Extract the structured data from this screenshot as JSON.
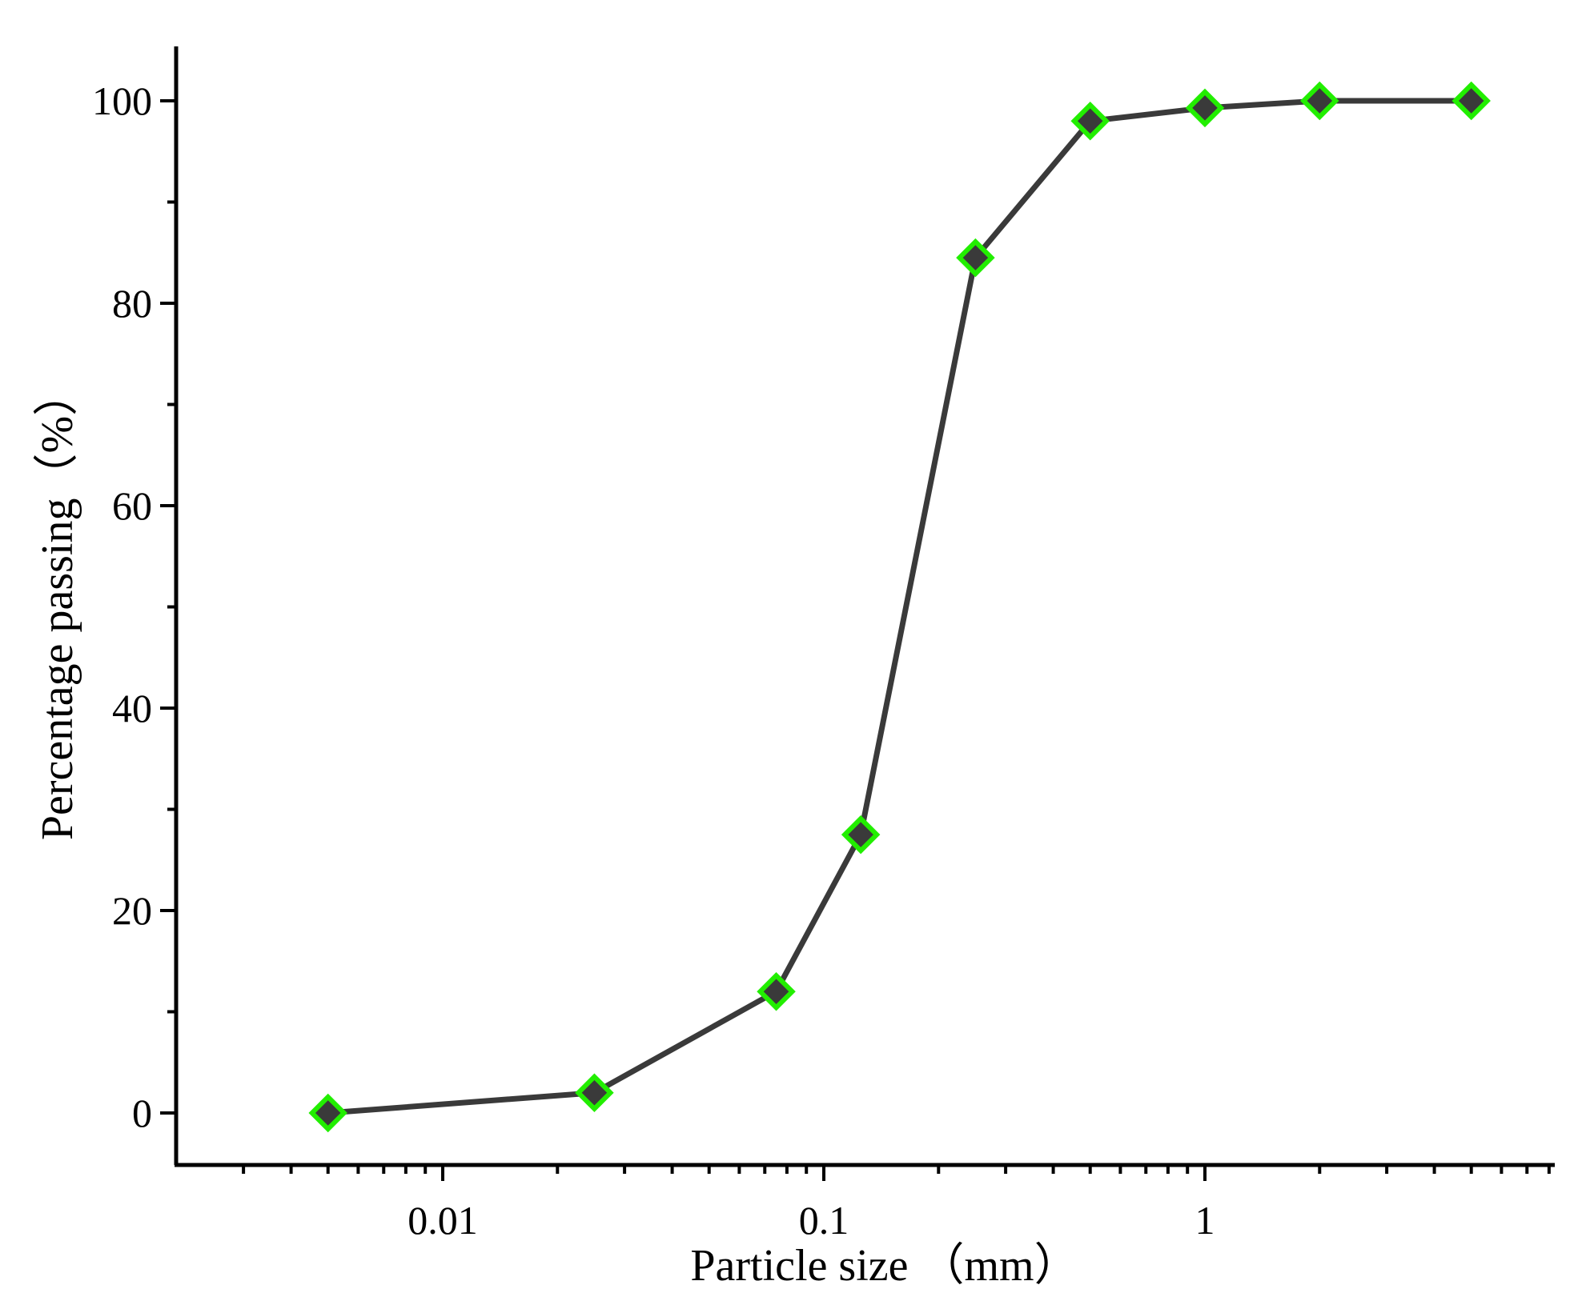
{
  "chart_data": {
    "type": "line",
    "title": "",
    "xlabel": "Particle size （mm）",
    "ylabel": "Percentage passing（%）",
    "x_scale": "log",
    "xlim": [
      0.002,
      8
    ],
    "ylim": [
      -5,
      105
    ],
    "x_ticks": [
      {
        "value": 0.01,
        "label": "0.01"
      },
      {
        "value": 0.1,
        "label": "0.1"
      },
      {
        "value": 1,
        "label": "1"
      }
    ],
    "y_ticks": [
      {
        "value": 0,
        "label": "0"
      },
      {
        "value": 20,
        "label": "20"
      },
      {
        "value": 40,
        "label": "40"
      },
      {
        "value": 60,
        "label": "60"
      },
      {
        "value": 80,
        "label": "80"
      },
      {
        "value": 100,
        "label": "100"
      }
    ],
    "grid": false,
    "legend": "none",
    "series": [
      {
        "x": [
          0.005,
          0.025,
          0.075,
          0.125,
          0.25,
          0.5,
          1,
          2,
          5
        ],
        "y": [
          0,
          2,
          12,
          27.5,
          84.5,
          98,
          99.3,
          100,
          100
        ],
        "line_color": "#3a3a3a",
        "marker": "diamond",
        "marker_fill": "#3a3a3a",
        "marker_edge": "#22ee00"
      }
    ]
  }
}
